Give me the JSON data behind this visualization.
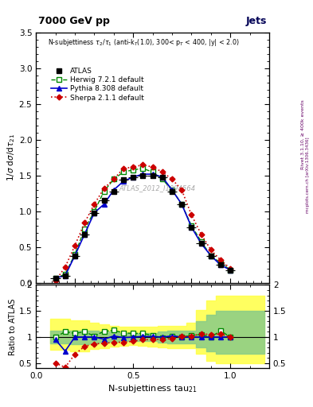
{
  "title_top": "7000 GeV pp",
  "title_right": "Jets",
  "annotation": "N-subjettiness $\\tau_2/\\tau_1$ (anti-k$_T$(1.0), 300< p$_T$ < 400, |y| < 2.0)",
  "watermark": "ATLAS_2012_I1094564",
  "ylabel_main": "1/σ dσ/dτ$_{21}$",
  "ylabel_ratio": "Ratio to ATLAS",
  "xlabel": "N-subjettiness tau$_{21}$",
  "rivet_label": "Rivet 3.1.10, ≥ 400k events",
  "mcplots_label": "mcplots.cern.ch [arXiv:1306.3436]",
  "atlas_color": "#000000",
  "herwig_color": "#008800",
  "pythia_color": "#0000cc",
  "sherpa_color": "#cc0000",
  "ylim_main": [
    0,
    3.5
  ],
  "ylim_ratio": [
    0.4,
    2.0
  ],
  "xlim": [
    0,
    1.2
  ],
  "x_main": [
    0.1,
    0.15,
    0.2,
    0.25,
    0.3,
    0.35,
    0.4,
    0.45,
    0.5,
    0.55,
    0.6,
    0.65,
    0.7,
    0.75,
    0.8,
    0.85,
    0.9,
    0.95,
    1.0
  ],
  "atlas_y_main": [
    0.07,
    0.1,
    0.38,
    0.68,
    0.98,
    1.15,
    1.28,
    1.44,
    1.48,
    1.5,
    1.5,
    1.48,
    1.28,
    1.1,
    0.78,
    0.55,
    0.38,
    0.25,
    0.18
  ],
  "herwig_y_main": [
    0.07,
    0.12,
    0.4,
    0.75,
    1.0,
    1.28,
    1.45,
    1.55,
    1.58,
    1.6,
    1.55,
    1.45,
    1.3,
    1.1,
    0.8,
    0.58,
    0.38,
    0.28,
    0.18
  ],
  "pythia_y_main": [
    0.07,
    0.1,
    0.38,
    0.68,
    0.98,
    1.1,
    1.3,
    1.42,
    1.48,
    1.52,
    1.52,
    1.48,
    1.3,
    1.1,
    0.78,
    0.55,
    0.38,
    0.25,
    0.18
  ],
  "sherpa_y_main": [
    0.03,
    0.22,
    0.52,
    0.84,
    1.1,
    1.32,
    1.45,
    1.6,
    1.62,
    1.65,
    1.62,
    1.55,
    1.45,
    1.3,
    0.95,
    0.68,
    0.46,
    0.32,
    0.2
  ],
  "atlas_xerr": 0.025,
  "atlas_yerr": [
    0.01,
    0.01,
    0.02,
    0.02,
    0.03,
    0.03,
    0.03,
    0.03,
    0.03,
    0.03,
    0.03,
    0.03,
    0.03,
    0.03,
    0.03,
    0.03,
    0.02,
    0.02,
    0.02
  ],
  "x_ratio": [
    0.1,
    0.15,
    0.2,
    0.25,
    0.3,
    0.35,
    0.4,
    0.45,
    0.5,
    0.55,
    0.6,
    0.65,
    0.7,
    0.75,
    0.8,
    0.85,
    0.9,
    0.95,
    1.0
  ],
  "ratio_herwig": [
    1.0,
    1.1,
    1.07,
    1.1,
    1.02,
    1.11,
    1.13,
    1.08,
    1.07,
    1.07,
    1.03,
    0.98,
    1.02,
    1.0,
    1.03,
    1.05,
    1.0,
    1.12,
    1.0
  ],
  "ratio_pythia": [
    0.95,
    0.73,
    1.0,
    1.0,
    1.0,
    0.96,
    1.02,
    0.99,
    1.0,
    1.01,
    1.01,
    1.0,
    1.02,
    1.0,
    1.0,
    1.0,
    1.0,
    1.0,
    1.0
  ],
  "ratio_sherpa": [
    0.5,
    0.42,
    0.67,
    0.82,
    0.87,
    0.88,
    0.9,
    0.9,
    0.92,
    0.95,
    0.95,
    0.96,
    0.97,
    1.01,
    1.02,
    1.06,
    1.05,
    1.06,
    1.0
  ],
  "band_x_edges": [
    0.075,
    0.125,
    0.175,
    0.225,
    0.275,
    0.325,
    0.375,
    0.425,
    0.475,
    0.525,
    0.575,
    0.625,
    0.675,
    0.725,
    0.775,
    0.825,
    0.875,
    0.925,
    0.975,
    1.025,
    1.075,
    1.125,
    1.175
  ],
  "yellow_lo": [
    0.75,
    0.75,
    0.72,
    0.73,
    0.77,
    0.79,
    0.82,
    0.83,
    0.84,
    0.83,
    0.82,
    0.8,
    0.78,
    0.78,
    0.78,
    0.68,
    0.55,
    0.5,
    0.5,
    0.5,
    0.5,
    0.5
  ],
  "yellow_hi": [
    1.35,
    1.35,
    1.32,
    1.32,
    1.28,
    1.25,
    1.22,
    1.2,
    1.2,
    1.2,
    1.2,
    1.22,
    1.22,
    1.22,
    1.28,
    1.52,
    1.7,
    1.8,
    1.8,
    1.8,
    1.8,
    1.8
  ],
  "green_lo": [
    0.88,
    0.88,
    0.87,
    0.87,
    0.88,
    0.9,
    0.91,
    0.92,
    0.92,
    0.92,
    0.92,
    0.9,
    0.88,
    0.88,
    0.88,
    0.8,
    0.72,
    0.68,
    0.68,
    0.68,
    0.68,
    0.68
  ],
  "green_hi": [
    1.12,
    1.12,
    1.12,
    1.12,
    1.12,
    1.1,
    1.1,
    1.08,
    1.08,
    1.08,
    1.08,
    1.1,
    1.12,
    1.12,
    1.12,
    1.3,
    1.42,
    1.5,
    1.5,
    1.5,
    1.5,
    1.5
  ]
}
